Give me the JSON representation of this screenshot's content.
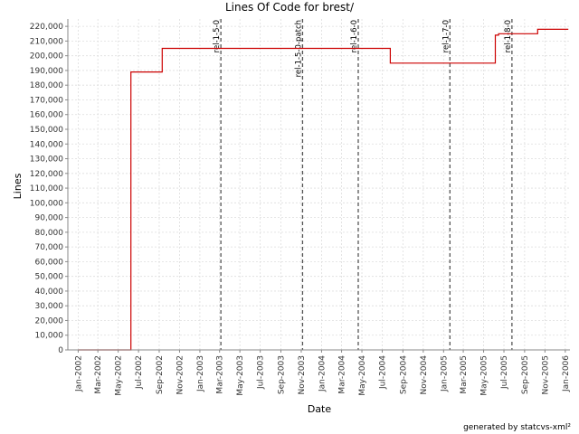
{
  "chart_data": {
    "type": "line",
    "title": "Lines Of Code for brest/",
    "xlabel": "Date",
    "ylabel": "Lines",
    "footer": "generated by statcvs-xml²",
    "ylim": [
      0,
      225000
    ],
    "xlim": [
      "2001-12-01",
      "2006-01-15"
    ],
    "y_ticks": [
      0,
      10000,
      20000,
      30000,
      40000,
      50000,
      60000,
      70000,
      80000,
      90000,
      100000,
      110000,
      120000,
      130000,
      140000,
      150000,
      160000,
      170000,
      180000,
      190000,
      200000,
      210000,
      220000
    ],
    "y_tick_labels": [
      "0",
      "10,000",
      "20,000",
      "30,000",
      "40,000",
      "50,000",
      "60,000",
      "70,000",
      "80,000",
      "90,000",
      "100,000",
      "110,000",
      "120,000",
      "130,000",
      "140,000",
      "150,000",
      "160,000",
      "170,000",
      "180,000",
      "190,000",
      "200,000",
      "210,000",
      "220,000"
    ],
    "x_ticks": [
      {
        "date": "2002-01-01",
        "label": "Jan-2002"
      },
      {
        "date": "2002-03-01",
        "label": "Mar-2002"
      },
      {
        "date": "2002-05-01",
        "label": "May-2002"
      },
      {
        "date": "2002-07-01",
        "label": "Jul-2002"
      },
      {
        "date": "2002-09-01",
        "label": "Sep-2002"
      },
      {
        "date": "2002-11-01",
        "label": "Nov-2002"
      },
      {
        "date": "2003-01-01",
        "label": "Jan-2003"
      },
      {
        "date": "2003-03-01",
        "label": "Mar-2003"
      },
      {
        "date": "2003-05-01",
        "label": "May-2003"
      },
      {
        "date": "2003-07-01",
        "label": "Jul-2003"
      },
      {
        "date": "2003-09-01",
        "label": "Sep-2003"
      },
      {
        "date": "2003-11-01",
        "label": "Nov-2003"
      },
      {
        "date": "2004-01-01",
        "label": "Jan-2004"
      },
      {
        "date": "2004-03-01",
        "label": "Mar-2004"
      },
      {
        "date": "2004-05-01",
        "label": "May-2004"
      },
      {
        "date": "2004-07-01",
        "label": "Jul-2004"
      },
      {
        "date": "2004-09-01",
        "label": "Sep-2004"
      },
      {
        "date": "2004-11-01",
        "label": "Nov-2004"
      },
      {
        "date": "2005-01-01",
        "label": "Jan-2005"
      },
      {
        "date": "2005-03-01",
        "label": "Mar-2005"
      },
      {
        "date": "2005-05-01",
        "label": "May-2005"
      },
      {
        "date": "2005-07-01",
        "label": "Jul-2005"
      },
      {
        "date": "2005-09-01",
        "label": "Sep-2005"
      },
      {
        "date": "2005-11-01",
        "label": "Nov-2005"
      },
      {
        "date": "2006-01-01",
        "label": "Jan-2006"
      }
    ],
    "series": [
      {
        "step": true,
        "color": "#cc0000",
        "points": [
          {
            "x": "2002-01-01",
            "y": 0
          },
          {
            "x": "2002-06-08",
            "y": 0
          },
          {
            "x": "2002-06-08",
            "y": 189000
          },
          {
            "x": "2002-09-10",
            "y": 189000
          },
          {
            "x": "2002-09-10",
            "y": 205000
          },
          {
            "x": "2004-07-25",
            "y": 205000
          },
          {
            "x": "2004-07-25",
            "y": 195000
          },
          {
            "x": "2005-06-05",
            "y": 195000
          },
          {
            "x": "2005-06-05",
            "y": 214000
          },
          {
            "x": "2005-06-15",
            "y": 214000
          },
          {
            "x": "2005-06-15",
            "y": 215000
          },
          {
            "x": "2005-10-10",
            "y": 215000
          },
          {
            "x": "2005-10-10",
            "y": 218000
          },
          {
            "x": "2006-01-10",
            "y": 218000
          }
        ]
      }
    ],
    "markers": [
      {
        "date": "2003-03-05",
        "label": "rel-1-5-0"
      },
      {
        "date": "2003-11-05",
        "label": "rel-1-5-0-patch"
      },
      {
        "date": "2004-04-20",
        "label": "rel-1-6-0"
      },
      {
        "date": "2005-01-20",
        "label": "rel-1-7-0"
      },
      {
        "date": "2005-07-25",
        "label": "rel-1-8-0"
      }
    ],
    "grid": true,
    "legend": "none",
    "colors": {
      "line": "#cc0000",
      "marker": "#555555",
      "grid": "#dddddd",
      "axis": "#888888"
    }
  }
}
